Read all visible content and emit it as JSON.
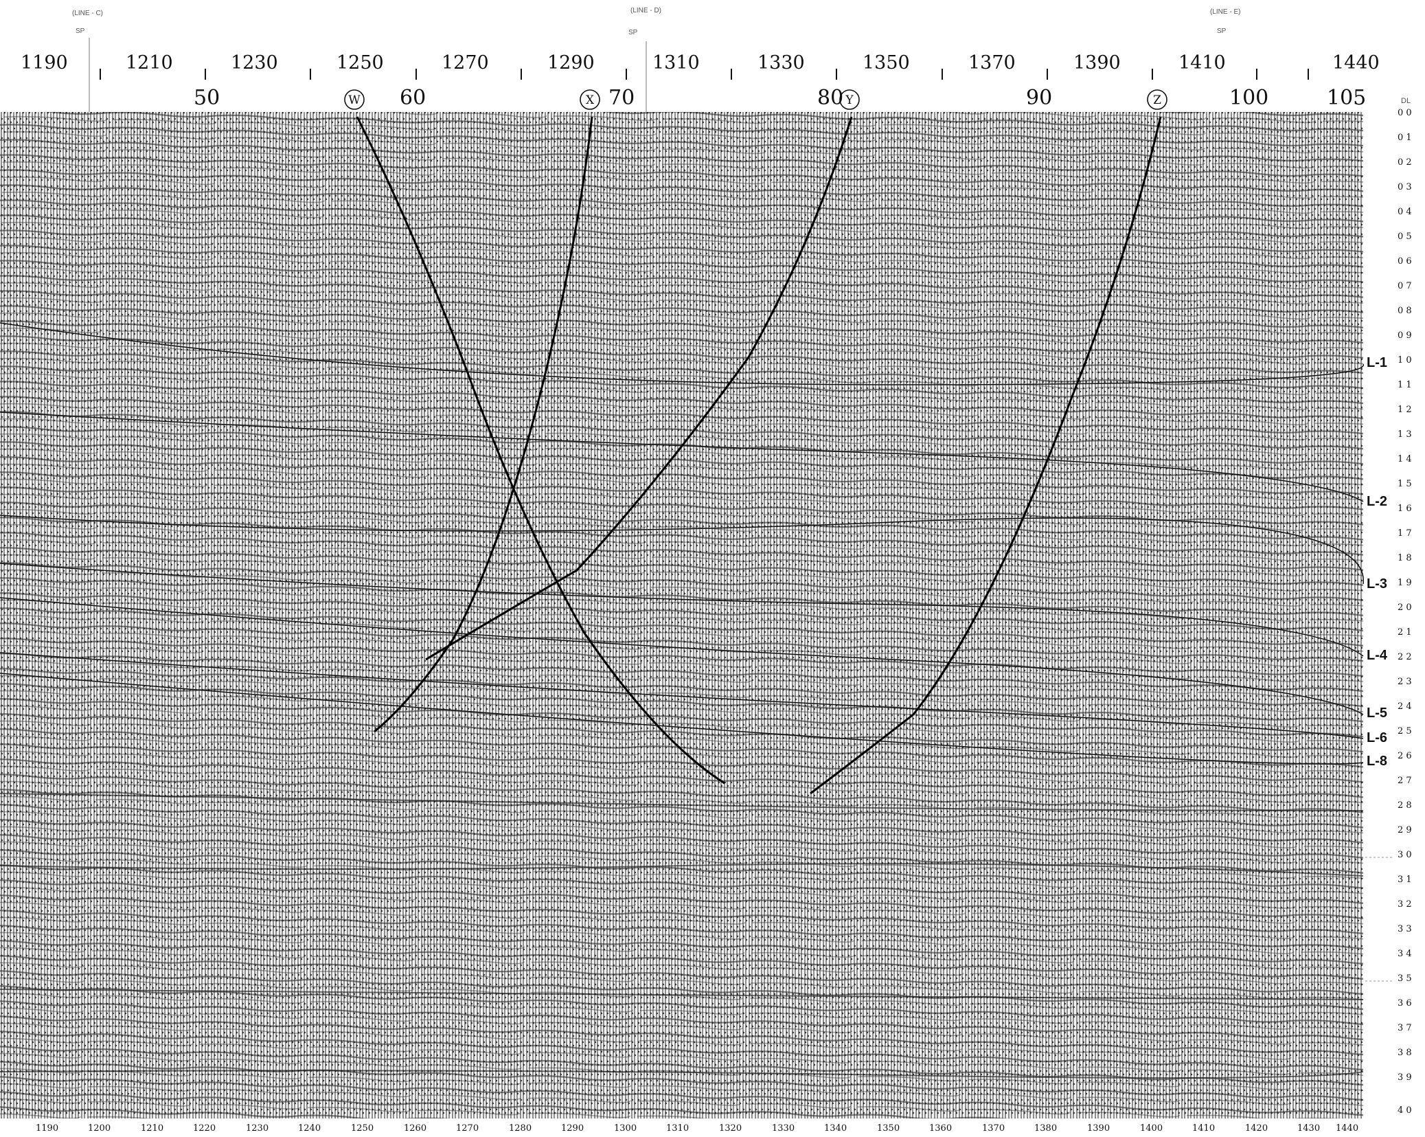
{
  "header": {
    "line_refs": [
      "(LINE - C)",
      "(LINE - D)",
      "(LINE - E)"
    ],
    "sp_refs": [
      "SP",
      "SP",
      "SP"
    ]
  },
  "top_sp_ticks": [
    "1190",
    "1210",
    "1230",
    "1250",
    "1270",
    "1290",
    "1310",
    "1330",
    "1350",
    "1370",
    "1390",
    "1410",
    "1440"
  ],
  "trace_ticks": [
    "50",
    "60",
    "70",
    "80",
    "90",
    "100",
    "105"
  ],
  "faults": [
    {
      "label": "W"
    },
    {
      "label": "X"
    },
    {
      "label": "Y"
    },
    {
      "label": "Z"
    }
  ],
  "right_axis": {
    "unit_label": "DL",
    "times": [
      "0 0",
      "0 1",
      "0 2",
      "0 3",
      "0 4",
      "0 5",
      "0 6",
      "0 7",
      "0 8",
      "0 9",
      "1 0",
      "1 1",
      "1 2",
      "1 3",
      "1 4",
      "1 5",
      "1 6",
      "1 7",
      "1 8",
      "1 9",
      "2 0",
      "2 1",
      "2 2",
      "2 3",
      "2 4",
      "2 5",
      "2 6",
      "2 7",
      "2 8",
      "2 9",
      "3 0",
      "3 1",
      "3 2",
      "3 3",
      "3 4",
      "3 5",
      "3 6",
      "3 7",
      "3 8",
      "3 9",
      "4 0"
    ]
  },
  "horizons": [
    "L-1",
    "L-2",
    "L-3",
    "L-4",
    "L-5",
    "L-6",
    "L-8"
  ],
  "bottom_sp_ticks": [
    "1190",
    "1200",
    "1210",
    "1220",
    "1230",
    "1240",
    "1250",
    "1260",
    "1270",
    "1280",
    "1290",
    "1300",
    "1310",
    "1320",
    "1330",
    "1340",
    "1350",
    "1360",
    "1370",
    "1380",
    "1390",
    "1400",
    "1410",
    "1420",
    "1430",
    "1440"
  ]
}
